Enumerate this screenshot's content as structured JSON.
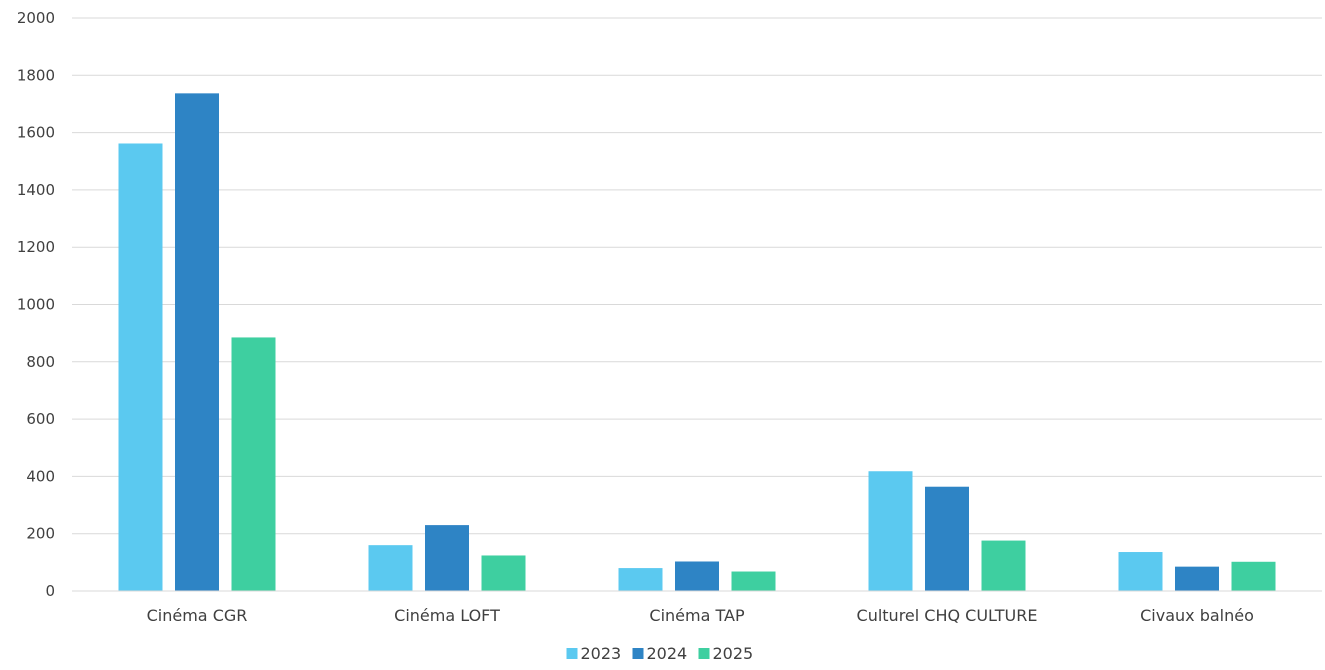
{
  "chart_data": {
    "type": "bar",
    "title": "",
    "xlabel": "",
    "ylabel": "",
    "ylim": [
      0,
      2000
    ],
    "y_ticks": [
      "0",
      "200",
      "400",
      "600",
      "800",
      "1000",
      "1200",
      "1400",
      "1600",
      "1800",
      "2000"
    ],
    "grid": true,
    "legend_position": "bottom",
    "categories": [
      "Cinéma CGR",
      "Cinéma LOFT",
      "Cinéma TAP",
      "Culturel CHQ CULTURE",
      "Civaux balnéo"
    ],
    "series": [
      {
        "name": "2023",
        "color": "#5BC9F0",
        "values": [
          1562,
          160,
          80,
          418,
          136
        ]
      },
      {
        "name": "2024",
        "color": "#2E84C5",
        "values": [
          1737,
          230,
          103,
          364,
          85
        ]
      },
      {
        "name": "2025",
        "color": "#3ECFA0",
        "values": [
          885,
          124,
          68,
          176,
          102
        ]
      }
    ]
  }
}
